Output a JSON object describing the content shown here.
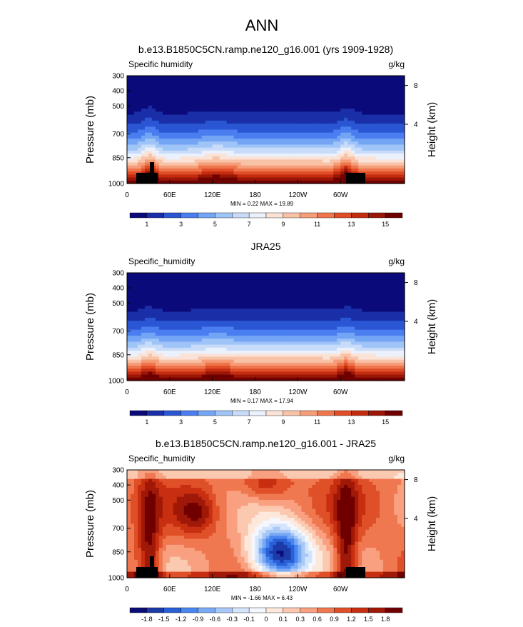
{
  "figure": {
    "title": "ANN"
  },
  "chart_data": [
    {
      "type": "heatmap",
      "title": "b.e13.B1850C5CN.ramp.ne120_g16.001 (yrs 1909-1928)",
      "left_label": "Specific humidity",
      "units": "g/kg",
      "ylabel": "Pressure (mb)",
      "ylabel_right": "Height (km)",
      "x_ticks": [
        "0",
        "60E",
        "120E",
        "180",
        "120W",
        "60W"
      ],
      "y_ticks": [
        "300",
        "400",
        "500",
        "700",
        "850",
        "1000"
      ],
      "y_ticks_right": [
        "8",
        "4"
      ],
      "min_max_text": "MIN =   0.22   MAX =  19.89",
      "min": 0.22,
      "max": 19.89,
      "colorbar_labels": [
        "1",
        "3",
        "5",
        "7",
        "9",
        "11",
        "13",
        "15"
      ],
      "field": "humidity",
      "scheme": "diverging_blue_red"
    },
    {
      "type": "heatmap",
      "title": "JRA25",
      "left_label": "Specific_humidity",
      "units": "g/kg",
      "ylabel": "Pressure (mb)",
      "ylabel_right": "Height (km)",
      "x_ticks": [
        "0",
        "60E",
        "120E",
        "180",
        "120W",
        "60W"
      ],
      "y_ticks": [
        "300",
        "400",
        "500",
        "700",
        "850",
        "1000"
      ],
      "y_ticks_right": [
        "8",
        "4"
      ],
      "min_max_text": "MIN =   0.17   MAX =  17.94",
      "min": 0.17,
      "max": 17.94,
      "colorbar_labels": [
        "1",
        "3",
        "5",
        "7",
        "9",
        "11",
        "13",
        "15"
      ],
      "field": "humidity_obs",
      "scheme": "diverging_blue_red"
    },
    {
      "type": "heatmap",
      "title": "b.e13.B1850C5CN.ramp.ne120_g16.001 - JRA25",
      "left_label": "Specific_humidity",
      "units": "g/kg",
      "ylabel": "Pressure (mb)",
      "ylabel_right": "Height (km)",
      "x_ticks": [
        "0",
        "60E",
        "120E",
        "180",
        "120W",
        "60W"
      ],
      "y_ticks": [
        "300",
        "400",
        "500",
        "700",
        "850",
        "1000"
      ],
      "y_ticks_right": [
        "8",
        "4"
      ],
      "min_max_text": "MIN =  -1.66   MAX =   6.43",
      "min": -1.66,
      "max": 6.43,
      "colorbar_labels": [
        "-1.8",
        "-1.5",
        "-1.2",
        "-0.9",
        "-0.6",
        "-0.3",
        "-0.1",
        "0",
        "0.1",
        "0.3",
        "0.6",
        "0.9",
        "1.2",
        "1.5",
        "1.8"
      ],
      "field": "difference",
      "scheme": "diverging_blue_red"
    }
  ]
}
